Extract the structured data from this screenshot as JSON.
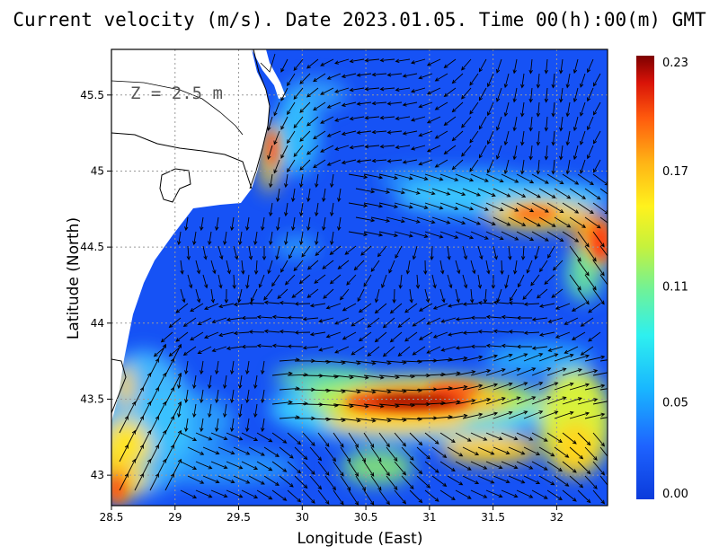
{
  "title": "Current velocity (m/s). Date 2023.01.05. Time 00(h):00(m) GMT",
  "depth_label": "Z  =  2.5 m",
  "map": {
    "xlabel": "Longitude (East)",
    "ylabel": "Latitude (North)",
    "lon_range": [
      28.5,
      32.4
    ],
    "lat_range": [
      42.8,
      45.8
    ],
    "lon_ticks": [
      "28.5",
      "29",
      "29.5",
      "30",
      "30.5",
      "31",
      "31.5",
      "32"
    ],
    "lat_ticks": [
      "43",
      "43.5",
      "44",
      "44.5",
      "45",
      "45.5"
    ],
    "grid": true
  },
  "colorbar": {
    "min": 0.0,
    "max": 0.23,
    "tick_labels": [
      "0.23",
      "0.17",
      "0.11",
      "0.05",
      "0.00"
    ],
    "colors": [
      "#0b3bdb",
      "#1e63ff",
      "#19b7ff",
      "#2ef0ef",
      "#6ef29a",
      "#c6f23c",
      "#fff21d",
      "#ffb315",
      "#ff5a0d",
      "#d81308",
      "#7d0000"
    ]
  }
}
